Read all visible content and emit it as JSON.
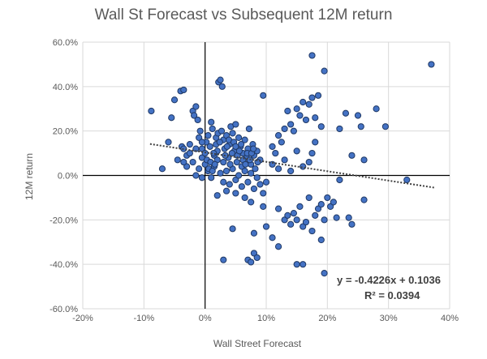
{
  "chart_data": {
    "type": "scatter",
    "title": "Wall St Forecast vs Subsequent 12M return",
    "xlabel": "Wall Street Forecast",
    "ylabel": "12M return",
    "xlim": [
      -0.2,
      0.4
    ],
    "ylim": [
      -0.6,
      0.6
    ],
    "x_ticks": [
      -0.2,
      -0.1,
      0.0,
      0.1,
      0.2,
      0.3,
      0.4
    ],
    "y_ticks": [
      -0.6,
      -0.4,
      -0.2,
      0.0,
      0.2,
      0.4,
      0.6
    ],
    "x_tick_labels": [
      "-20%",
      "-10%",
      "0%",
      "10%",
      "20%",
      "30%",
      "40%"
    ],
    "y_tick_labels": [
      "-60.0%",
      "-40.0%",
      "-20.0%",
      "0.0%",
      "20.0%",
      "40.0%",
      "60.0%"
    ],
    "grid": true,
    "marker_color": "#4472C4",
    "marker_edge": "#1F3864",
    "trendline": {
      "slope": -0.4226,
      "intercept": 0.1036,
      "x_range": [
        -0.09,
        0.375
      ],
      "equation": "y = -0.4226x + 0.1036",
      "r_squared": "R² = 0.0394"
    },
    "points": [
      [
        -0.088,
        0.29
      ],
      [
        -0.07,
        0.03
      ],
      [
        -0.06,
        0.15
      ],
      [
        -0.055,
        0.26
      ],
      [
        -0.05,
        0.34
      ],
      [
        -0.04,
        0.38
      ],
      [
        -0.035,
        0.385
      ],
      [
        -0.038,
        0.13
      ],
      [
        -0.035,
        0.12
      ],
      [
        -0.03,
        0.09
      ],
      [
        -0.025,
        0.14
      ],
      [
        -0.02,
        0.29
      ],
      [
        -0.018,
        0.27
      ],
      [
        -0.015,
        0.31
      ],
      [
        -0.012,
        0.25
      ],
      [
        -0.01,
        0.17
      ],
      [
        -0.008,
        0.2
      ],
      [
        -0.005,
        0.12
      ],
      [
        -0.02,
        0.06
      ],
      [
        -0.03,
        0.04
      ],
      [
        -0.015,
        0.0
      ],
      [
        -0.01,
        0.03
      ],
      [
        -0.005,
        0.08
      ],
      [
        0.0,
        0.1
      ],
      [
        0.002,
        0.15
      ],
      [
        0.005,
        0.18
      ],
      [
        0.008,
        0.13
      ],
      [
        0.01,
        0.24
      ],
      [
        0.012,
        0.21
      ],
      [
        0.015,
        0.09
      ],
      [
        0.018,
        0.14
      ],
      [
        0.02,
        0.11
      ],
      [
        0.022,
        0.42
      ],
      [
        0.025,
        0.43
      ],
      [
        0.028,
        0.4
      ],
      [
        0.03,
        0.16
      ],
      [
        0.032,
        0.12
      ],
      [
        0.035,
        0.18
      ],
      [
        0.038,
        0.08
      ],
      [
        0.04,
        0.14
      ],
      [
        0.042,
        0.22
      ],
      [
        0.045,
        0.19
      ],
      [
        0.048,
        0.11
      ],
      [
        0.05,
        0.23
      ],
      [
        0.052,
        0.06
      ],
      [
        0.055,
        0.17
      ],
      [
        0.058,
        0.13
      ],
      [
        0.06,
        0.04
      ],
      [
        0.062,
        0.1
      ],
      [
        0.065,
        0.16
      ],
      [
        0.068,
        0.08
      ],
      [
        0.07,
        0.12
      ],
      [
        0.072,
        0.21
      ],
      [
        0.075,
        0.05
      ],
      [
        0.078,
        0.14
      ],
      [
        0.08,
        0.09
      ],
      [
        0.085,
        0.11
      ],
      [
        0.09,
        0.07
      ],
      [
        0.095,
        0.36
      ],
      [
        0.005,
        0.02
      ],
      [
        0.01,
        -0.01
      ],
      [
        0.015,
        0.04
      ],
      [
        0.02,
        0.07
      ],
      [
        0.025,
        0.01
      ],
      [
        0.03,
        -0.03
      ],
      [
        0.035,
        0.02
      ],
      [
        0.04,
        -0.04
      ],
      [
        0.045,
        0.03
      ],
      [
        0.05,
        -0.02
      ],
      [
        0.055,
        0.0
      ],
      [
        0.06,
        -0.05
      ],
      [
        0.065,
        0.02
      ],
      [
        0.07,
        -0.03
      ],
      [
        0.075,
        0.01
      ],
      [
        0.08,
        -0.06
      ],
      [
        0.085,
        -0.01
      ],
      [
        0.09,
        -0.04
      ],
      [
        0.095,
        -0.08
      ],
      [
        0.1,
        -0.03
      ],
      [
        0.02,
        -0.09
      ],
      [
        0.035,
        -0.07
      ],
      [
        0.05,
        -0.08
      ],
      [
        0.065,
        -0.1
      ],
      [
        0.075,
        -0.12
      ],
      [
        0.045,
        -0.24
      ],
      [
        0.08,
        -0.26
      ],
      [
        0.095,
        -0.14
      ],
      [
        0.1,
        -0.23
      ],
      [
        0.03,
        -0.38
      ],
      [
        0.07,
        -0.38
      ],
      [
        0.075,
        -0.39
      ],
      [
        0.08,
        -0.35
      ],
      [
        0.085,
        -0.37
      ],
      [
        -0.005,
        -0.01
      ],
      [
        0.0,
        0.05
      ],
      [
        0.003,
        0.07
      ],
      [
        0.006,
        0.03
      ],
      [
        0.009,
        0.06
      ],
      [
        0.012,
        0.02
      ],
      [
        0.014,
        0.1
      ],
      [
        0.016,
        0.05
      ],
      [
        0.018,
        0.17
      ],
      [
        0.021,
        0.19
      ],
      [
        0.024,
        0.15
      ],
      [
        0.027,
        0.2
      ],
      [
        0.03,
        0.06
      ],
      [
        0.033,
        0.09
      ],
      [
        0.036,
        0.13
      ],
      [
        0.039,
        0.16
      ],
      [
        0.041,
        0.05
      ],
      [
        0.044,
        0.1
      ],
      [
        0.047,
        0.15
      ],
      [
        0.05,
        0.13
      ],
      [
        0.053,
        0.09
      ],
      [
        0.056,
        0.11
      ],
      [
        0.059,
        0.14
      ],
      [
        0.062,
        0.07
      ],
      [
        0.066,
        0.05
      ],
      [
        0.069,
        0.1
      ],
      [
        0.073,
        0.07
      ],
      [
        0.076,
        0.1
      ],
      [
        0.079,
        0.12
      ],
      [
        0.082,
        0.03
      ],
      [
        0.086,
        0.06
      ],
      [
        -0.045,
        0.07
      ],
      [
        -0.035,
        0.06
      ],
      [
        -0.025,
        0.1
      ],
      [
        -0.015,
        0.12
      ],
      [
        -0.005,
        0.15
      ],
      [
        0.11,
        0.13
      ],
      [
        0.115,
        0.1
      ],
      [
        0.12,
        0.18
      ],
      [
        0.125,
        0.15
      ],
      [
        0.13,
        0.21
      ],
      [
        0.135,
        0.29
      ],
      [
        0.14,
        0.23
      ],
      [
        0.145,
        0.2
      ],
      [
        0.15,
        0.3
      ],
      [
        0.155,
        0.27
      ],
      [
        0.16,
        0.33
      ],
      [
        0.165,
        0.25
      ],
      [
        0.17,
        0.32
      ],
      [
        0.175,
        0.35
      ],
      [
        0.18,
        0.26
      ],
      [
        0.185,
        0.36
      ],
      [
        0.19,
        0.22
      ],
      [
        0.195,
        0.47
      ],
      [
        0.175,
        0.54
      ],
      [
        0.22,
        0.21
      ],
      [
        0.23,
        0.28
      ],
      [
        0.24,
        0.09
      ],
      [
        0.25,
        0.27
      ],
      [
        0.255,
        0.22
      ],
      [
        0.26,
        0.07
      ],
      [
        0.28,
        0.3
      ],
      [
        0.295,
        0.22
      ],
      [
        0.33,
        -0.02
      ],
      [
        0.37,
        0.5
      ],
      [
        0.11,
        0.05
      ],
      [
        0.12,
        0.03
      ],
      [
        0.13,
        0.07
      ],
      [
        0.14,
        0.02
      ],
      [
        0.15,
        0.11
      ],
      [
        0.16,
        0.04
      ],
      [
        0.17,
        0.06
      ],
      [
        0.175,
        0.1
      ],
      [
        0.18,
        0.15
      ],
      [
        0.12,
        -0.15
      ],
      [
        0.13,
        -0.2
      ],
      [
        0.135,
        -0.18
      ],
      [
        0.14,
        -0.22
      ],
      [
        0.145,
        -0.17
      ],
      [
        0.15,
        -0.2
      ],
      [
        0.155,
        -0.14
      ],
      [
        0.16,
        -0.23
      ],
      [
        0.165,
        -0.21
      ],
      [
        0.17,
        -0.1
      ],
      [
        0.175,
        -0.25
      ],
      [
        0.18,
        -0.18
      ],
      [
        0.185,
        -0.15
      ],
      [
        0.19,
        -0.13
      ],
      [
        0.195,
        -0.2
      ],
      [
        0.2,
        -0.1
      ],
      [
        0.205,
        -0.14
      ],
      [
        0.21,
        -0.12
      ],
      [
        0.215,
        -0.19
      ],
      [
        0.22,
        -0.02
      ],
      [
        0.235,
        -0.19
      ],
      [
        0.24,
        -0.22
      ],
      [
        0.26,
        -0.11
      ],
      [
        0.11,
        -0.28
      ],
      [
        0.12,
        -0.32
      ],
      [
        0.15,
        -0.4
      ],
      [
        0.16,
        -0.4
      ],
      [
        0.19,
        -0.29
      ],
      [
        0.195,
        -0.44
      ]
    ]
  }
}
